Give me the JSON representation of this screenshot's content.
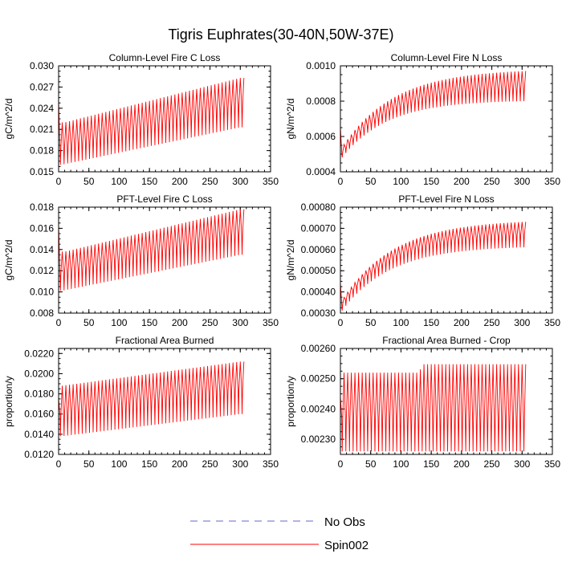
{
  "figure": {
    "title": "Tigris Euphrates(30-40N,50W-37E)"
  },
  "legend": {
    "position": "bottom-center",
    "items": [
      {
        "label": "No Obs",
        "color": "#6666cc",
        "style": "dashed"
      },
      {
        "label": "Spin002",
        "color": "#ff0000",
        "style": "solid"
      }
    ]
  },
  "chart_data": [
    {
      "type": "line",
      "title": "Column-Level Fire C Loss",
      "ylabel": "gC/m^2/d",
      "xlim": [
        0,
        350
      ],
      "ylim": [
        0.015,
        0.03
      ],
      "xticks": [
        0,
        50,
        100,
        150,
        200,
        250,
        300,
        350
      ],
      "xtick_labels": [
        "0",
        "50",
        "100",
        "150",
        "200",
        "250",
        "300",
        "350"
      ],
      "yticks": [
        0.015,
        0.018,
        0.021,
        0.024,
        0.027,
        0.03
      ],
      "ytick_labels": [
        "0.015",
        "0.018",
        "0.021",
        "0.024",
        "0.027",
        "0.030"
      ],
      "series": [
        {
          "name": "Spin002",
          "color": "#ff0000",
          "x_range": [
            0,
            308
          ],
          "period": 6,
          "start": 0.025,
          "low": {
            "x": [
              5,
              300
            ],
            "y": [
              0.016,
              0.0213
            ]
          },
          "high": {
            "x": [
              10,
              300
            ],
            "y": [
              0.022,
              0.0283
            ]
          },
          "mid": {
            "x": [
              10,
              300
            ],
            "y": [
              0.0185,
              0.0245
            ]
          }
        }
      ]
    },
    {
      "type": "line",
      "title": "Column-Level Fire N Loss",
      "ylabel": "gN/m^2/d",
      "xlim": [
        0,
        350
      ],
      "ylim": [
        0.0004,
        0.001
      ],
      "xticks": [
        0,
        50,
        100,
        150,
        200,
        250,
        300,
        350
      ],
      "xtick_labels": [
        "0",
        "50",
        "100",
        "150",
        "200",
        "250",
        "300",
        "350"
      ],
      "yticks": [
        0.0004,
        0.0006,
        0.0008,
        0.001
      ],
      "ytick_labels": [
        "0.0004",
        "0.0006",
        "0.0008",
        "0.0010"
      ],
      "series": [
        {
          "name": "Spin002",
          "color": "#ff0000",
          "x_range": [
            0,
            308
          ],
          "period": 6,
          "start": 0.00065,
          "low": {
            "x": [
              5,
              300
            ],
            "y": [
              0.00049,
              0.0008
            ],
            "tau": 75
          },
          "high": {
            "x": [
              5,
              300
            ],
            "y": [
              0.00055,
              0.00097
            ],
            "tau": 85
          },
          "mid": {
            "x": [
              5,
              300
            ],
            "y": [
              0.00052,
              0.00087
            ],
            "tau": 80
          }
        }
      ]
    },
    {
      "type": "line",
      "title": "PFT-Level Fire C Loss",
      "ylabel": "gC/m^2/d",
      "xlim": [
        0,
        350
      ],
      "ylim": [
        0.008,
        0.018
      ],
      "xticks": [
        0,
        50,
        100,
        150,
        200,
        250,
        300,
        350
      ],
      "xtick_labels": [
        "0",
        "50",
        "100",
        "150",
        "200",
        "250",
        "300",
        "350"
      ],
      "yticks": [
        0.008,
        0.01,
        0.012,
        0.014,
        0.016,
        0.018
      ],
      "ytick_labels": [
        "0.008",
        "0.010",
        "0.012",
        "0.014",
        "0.016",
        "0.018"
      ],
      "series": [
        {
          "name": "Spin002",
          "color": "#ff0000",
          "x_range": [
            0,
            308
          ],
          "period": 6,
          "start": 0.0163,
          "low": {
            "x": [
              5,
              300
            ],
            "y": [
              0.0101,
              0.0135
            ]
          },
          "high": {
            "x": [
              10,
              300
            ],
            "y": [
              0.0138,
              0.0178
            ]
          },
          "mid": {
            "x": [
              10,
              300
            ],
            "y": [
              0.0118,
              0.0155
            ]
          }
        }
      ]
    },
    {
      "type": "line",
      "title": "PFT-Level Fire N Loss",
      "ylabel": "gN/m^2/d",
      "xlim": [
        0,
        350
      ],
      "ylim": [
        0.0003,
        0.0008
      ],
      "xticks": [
        0,
        50,
        100,
        150,
        200,
        250,
        300,
        350
      ],
      "xtick_labels": [
        "0",
        "50",
        "100",
        "150",
        "200",
        "250",
        "300",
        "350"
      ],
      "yticks": [
        0.0003,
        0.0004,
        0.0005,
        0.0006,
        0.0007,
        0.0008
      ],
      "ytick_labels": [
        "0.00030",
        "0.00040",
        "0.00050",
        "0.00060",
        "0.00070",
        "0.00080"
      ],
      "series": [
        {
          "name": "Spin002",
          "color": "#ff0000",
          "x_range": [
            0,
            308
          ],
          "period": 6,
          "start": 0.00044,
          "low": {
            "x": [
              5,
              300
            ],
            "y": [
              0.00032,
              0.00061
            ],
            "tau": 80
          },
          "high": {
            "x": [
              5,
              300
            ],
            "y": [
              0.00037,
              0.00073
            ],
            "tau": 85
          },
          "mid": {
            "x": [
              5,
              300
            ],
            "y": [
              0.00035,
              0.00067
            ],
            "tau": 82
          }
        }
      ]
    },
    {
      "type": "line",
      "title": "Fractional Area Burned",
      "ylabel": "proportion/y",
      "xlim": [
        0,
        350
      ],
      "ylim": [
        0.012,
        0.0225
      ],
      "xticks": [
        0,
        50,
        100,
        150,
        200,
        250,
        300,
        350
      ],
      "xtick_labels": [
        "0",
        "50",
        "100",
        "150",
        "200",
        "250",
        "300",
        "350"
      ],
      "yticks": [
        0.012,
        0.014,
        0.016,
        0.018,
        0.02,
        0.022
      ],
      "ytick_labels": [
        "0.0120",
        "0.0140",
        "0.0160",
        "0.0180",
        "0.0200",
        "0.0220"
      ],
      "series": [
        {
          "name": "Spin002",
          "color": "#ff0000",
          "x_range": [
            0,
            308
          ],
          "period": 6,
          "start": 0.0175,
          "low": {
            "x": [
              5,
              300
            ],
            "y": [
              0.0138,
              0.016
            ]
          },
          "high": {
            "x": [
              5,
              300
            ],
            "y": [
              0.0188,
              0.0212
            ]
          },
          "mid": {
            "x": [
              5,
              300
            ],
            "y": [
              0.016,
              0.0185
            ]
          }
        }
      ]
    },
    {
      "type": "line",
      "title": "Fractional Area Burned - Crop",
      "ylabel": "proportion/y",
      "xlim": [
        0,
        350
      ],
      "ylim": [
        0.00225,
        0.0026
      ],
      "xticks": [
        0,
        50,
        100,
        150,
        200,
        250,
        300,
        350
      ],
      "xtick_labels": [
        "0",
        "50",
        "100",
        "150",
        "200",
        "250",
        "300",
        "350"
      ],
      "yticks": [
        0.0023,
        0.0024,
        0.0025,
        0.0026
      ],
      "ytick_labels": [
        "0.00230",
        "0.00240",
        "0.00250",
        "0.00260"
      ],
      "series": [
        {
          "name": "Spin002",
          "color": "#ff0000",
          "x_range": [
            0,
            308
          ],
          "period": 6,
          "start": 0.00244,
          "low": {
            "x": [
              5,
              300
            ],
            "y": [
              0.00226,
              0.00226
            ]
          },
          "high": {
            "x": [
              5,
              130,
              135,
              300
            ],
            "y": [
              0.00252,
              0.00252,
              0.002548,
              0.002548
            ]
          },
          "mid": {
            "x": [
              5,
              300
            ],
            "y": [
              0.00237,
              0.00237
            ]
          }
        }
      ]
    }
  ]
}
